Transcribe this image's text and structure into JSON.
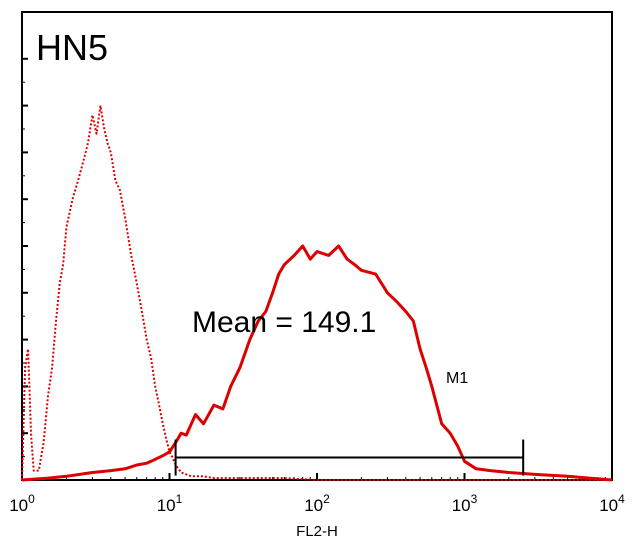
{
  "chart_data": {
    "type": "line",
    "title": "HN5",
    "xlabel": "FL2-H",
    "ylabel": "",
    "x_scale": "log",
    "xlim": [
      1,
      10000
    ],
    "ylim": [
      0,
      250
    ],
    "grid": false,
    "x_ticks": [
      {
        "base": "10",
        "exp": "0",
        "value": 1
      },
      {
        "base": "10",
        "exp": "1",
        "value": 10
      },
      {
        "base": "10",
        "exp": "2",
        "value": 100
      },
      {
        "base": "10",
        "exp": "3",
        "value": 1000
      },
      {
        "base": "10",
        "exp": "4",
        "value": 10000
      }
    ],
    "annotation": "Mean = 149.1",
    "marker": {
      "label": "M1",
      "range": [
        11,
        2500
      ]
    },
    "colors": {
      "series": "#dd0000",
      "marker": "#000000"
    },
    "series": [
      {
        "style": "dotted",
        "x": [
          1.0,
          1.05,
          1.1,
          1.15,
          1.2,
          1.3,
          1.4,
          1.5,
          1.6,
          1.7,
          1.8,
          1.9,
          2.0,
          2.2,
          2.4,
          2.6,
          2.8,
          3.0,
          3.2,
          3.4,
          3.6,
          3.8,
          4.0,
          4.3,
          4.6,
          5.0,
          5.5,
          6.0,
          6.5,
          7.0,
          7.5,
          8.0,
          8.5,
          9.0,
          9.5,
          10.0,
          10.5,
          11.0,
          11.5,
          12.0,
          13.0,
          14.0,
          15.0,
          17.0,
          20.0,
          25.0,
          30.0,
          40.0,
          60.0,
          100.0,
          200.0,
          400.0,
          1000.0,
          3000.0,
          10000.0
        ],
        "y": [
          0,
          60,
          70,
          25,
          5,
          5,
          20,
          45,
          60,
          85,
          105,
          115,
          135,
          150,
          160,
          170,
          180,
          195,
          185,
          200,
          188,
          180,
          175,
          160,
          155,
          140,
          120,
          105,
          90,
          75,
          65,
          50,
          40,
          30,
          22,
          15,
          12,
          8,
          6,
          4,
          3,
          2,
          2,
          2,
          1,
          1,
          1,
          1,
          1,
          0,
          0,
          0,
          0,
          0,
          0
        ]
      },
      {
        "style": "solid",
        "x": [
          1.0,
          1.5,
          2.0,
          3.0,
          4.0,
          5.0,
          6.0,
          7.0,
          8.0,
          9.0,
          10.0,
          11.0,
          12.0,
          13.0,
          15.0,
          17.0,
          20.0,
          23.0,
          26.0,
          30.0,
          35.0,
          40.0,
          45.0,
          50.0,
          55.0,
          60.0,
          70.0,
          80.0,
          90.0,
          100.0,
          120.0,
          140.0,
          160.0,
          180.0,
          200.0,
          250.0,
          300.0,
          350.0,
          400.0,
          450.0,
          500.0,
          550.0,
          600.0,
          700.0,
          800.0,
          900.0,
          1000.0,
          1200.0,
          1500.0,
          2000.0,
          3000.0,
          5000.0,
          7000.0,
          10000.0
        ],
        "y": [
          0,
          1,
          2,
          4,
          5,
          6,
          8,
          9,
          11,
          13,
          15,
          20,
          25,
          24,
          35,
          30,
          40,
          38,
          50,
          60,
          75,
          85,
          90,
          100,
          110,
          115,
          120,
          125,
          118,
          122,
          120,
          125,
          118,
          115,
          112,
          110,
          100,
          95,
          90,
          85,
          70,
          60,
          50,
          30,
          25,
          18,
          10,
          6,
          5,
          4,
          3,
          2,
          1,
          0
        ]
      }
    ]
  }
}
